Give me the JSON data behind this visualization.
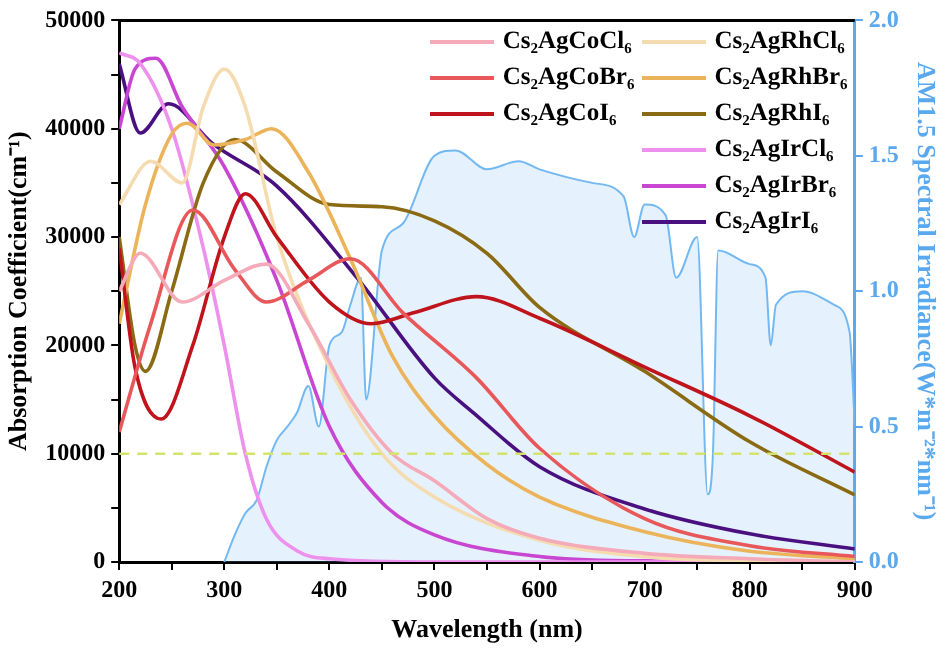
{
  "chart_data": {
    "type": "line",
    "xlabel": "Wavelength (nm)",
    "ylabel": "Absorption Coefficient(cm⁻¹)",
    "y2label": "AM1.5 Spectral Irradiance(W*m⁻²*nm⁻¹)",
    "xlim": [
      200,
      900
    ],
    "xticks": [
      200,
      {
        "value": 250,
        "label": null
      },
      300,
      {
        "value": 350,
        "label": null
      },
      400,
      {
        "value": 450,
        "label": null
      },
      500,
      {
        "value": 550,
        "label": null
      },
      600,
      {
        "value": 650,
        "label": null
      },
      700,
      {
        "value": 750,
        "label": null
      },
      800,
      {
        "value": 850,
        "label": null
      },
      900
    ],
    "ylim": [
      0,
      50000
    ],
    "yticks": [
      0,
      {
        "value": 5000,
        "label": null
      },
      10000,
      {
        "value": 15000,
        "label": null
      },
      20000,
      {
        "value": 25000,
        "label": null
      },
      30000,
      {
        "value": 35000,
        "label": null
      },
      40000,
      {
        "value": 45000,
        "label": null
      },
      50000
    ],
    "y2lim": [
      0,
      2
    ],
    "y2ticks": [
      {
        "value": 0,
        "label": "0.0"
      },
      0.5,
      {
        "value": 1,
        "label": "1.0"
      },
      1.5,
      {
        "value": 2,
        "label": "2.0"
      }
    ],
    "marker": "none",
    "legend": "top right",
    "ref_lines": [
      {
        "axis": "y",
        "value": 10000,
        "color": "#d4e36a",
        "line_style": "dashed"
      }
    ],
    "series": [
      {
        "name": "Cs₂AgCoCl₆",
        "color": "#f4aab8",
        "x": [
          200,
          220,
          260,
          300,
          340,
          380,
          420,
          460,
          500,
          550,
          600,
          700,
          800,
          900
        ],
        "values": [
          25000,
          28500,
          24000,
          26000,
          27500,
          22000,
          15000,
          10000,
          7500,
          4000,
          2200,
          800,
          300,
          0
        ]
      },
      {
        "name": "Cs₂AgCoBr₆",
        "color": "#e8575a",
        "x": [
          200,
          230,
          270,
          310,
          340,
          380,
          420,
          470,
          540,
          600,
          700,
          800,
          900
        ],
        "values": [
          12000,
          22000,
          32500,
          27000,
          24000,
          26000,
          28000,
          23000,
          17000,
          10500,
          4000,
          1500,
          500
        ]
      },
      {
        "name": "Cs₂AgCoI₆",
        "color": "#c0141c",
        "x": [
          200,
          215,
          240,
          270,
          300,
          320,
          350,
          400,
          440,
          480,
          540,
          600,
          700,
          800,
          900
        ],
        "values": [
          29000,
          18000,
          13200,
          20000,
          30000,
          34000,
          30000,
          24000,
          22000,
          23000,
          24500,
          22500,
          18000,
          13500,
          8300
        ]
      },
      {
        "name": "Cs₂AgRhCl₆",
        "color": "#f5dcb0",
        "x": [
          200,
          230,
          260,
          280,
          300,
          320,
          350,
          400,
          450,
          500,
          600,
          700,
          800,
          900
        ],
        "values": [
          33000,
          37000,
          35000,
          42000,
          45500,
          42000,
          30000,
          18000,
          10000,
          6000,
          2000,
          500,
          100,
          0
        ]
      },
      {
        "name": "Cs₂AgRhBr₆",
        "color": "#ecb45a",
        "x": [
          200,
          225,
          250,
          265,
          290,
          320,
          345,
          380,
          420,
          460,
          500,
          550,
          600,
          700,
          800,
          900
        ],
        "values": [
          22000,
          33000,
          39500,
          40500,
          38500,
          39000,
          40000,
          36000,
          28000,
          19000,
          13500,
          9000,
          6000,
          2800,
          1000,
          300
        ]
      },
      {
        "name": "Cs₂AgRhI₆",
        "color": "#8b6a14",
        "x": [
          200,
          215,
          225,
          250,
          280,
          310,
          350,
          400,
          450,
          500,
          550,
          600,
          700,
          800,
          900
        ],
        "values": [
          30000,
          20000,
          17600,
          25000,
          35000,
          39000,
          36000,
          33000,
          32800,
          31500,
          28500,
          23500,
          17600,
          11100,
          6200
        ]
      },
      {
        "name": "Cs₂AgIrCl₆",
        "color": "#ee90ee",
        "x": [
          200,
          220,
          250,
          280,
          300,
          320,
          340,
          370,
          400,
          500,
          900
        ],
        "values": [
          47000,
          46000,
          40000,
          29000,
          20000,
          10000,
          4000,
          1000,
          300,
          0,
          0
        ]
      },
      {
        "name": "Cs₂AgIrBr₆",
        "color": "#c846d2",
        "x": [
          200,
          215,
          235,
          260,
          300,
          350,
          400,
          450,
          500,
          600,
          700,
          900
        ],
        "values": [
          40000,
          45500,
          46500,
          42000,
          36500,
          26000,
          12500,
          5500,
          2500,
          500,
          100,
          0
        ]
      },
      {
        "name": "Cs₂AgIrI₆",
        "color": "#4b1080",
        "x": [
          200,
          220,
          247,
          288,
          350,
          425,
          500,
          538,
          600,
          700,
          800,
          900
        ],
        "values": [
          46000,
          39600,
          42300,
          38700,
          34700,
          26400,
          17000,
          13700,
          8800,
          4900,
          2600,
          1200
        ]
      },
      {
        "type": "area",
        "axis": "y2",
        "color": "#74b8f2",
        "x": [
          300,
          310,
          320,
          331,
          340,
          350,
          360,
          369,
          380,
          390,
          400,
          412,
          420,
          430,
          435,
          450,
          470,
          500,
          520,
          550,
          580,
          600,
          650,
          680,
          690,
          700,
          720,
          730,
          750,
          760,
          765,
          770,
          800,
          815,
          820,
          825,
          850,
          880,
          895,
          900
        ],
        "values": [
          0,
          0.1,
          0.18,
          0.23,
          0.35,
          0.45,
          0.5,
          0.55,
          0.65,
          0.5,
          0.8,
          0.85,
          0.95,
          1.05,
          0.6,
          1.15,
          1.25,
          1.5,
          1.52,
          1.45,
          1.48,
          1.45,
          1.4,
          1.35,
          1.2,
          1.32,
          1.28,
          1.05,
          1.2,
          0.25,
          0.4,
          1.15,
          1.1,
          1.05,
          0.8,
          0.95,
          1.0,
          0.95,
          0.85,
          0.5
        ]
      }
    ]
  }
}
